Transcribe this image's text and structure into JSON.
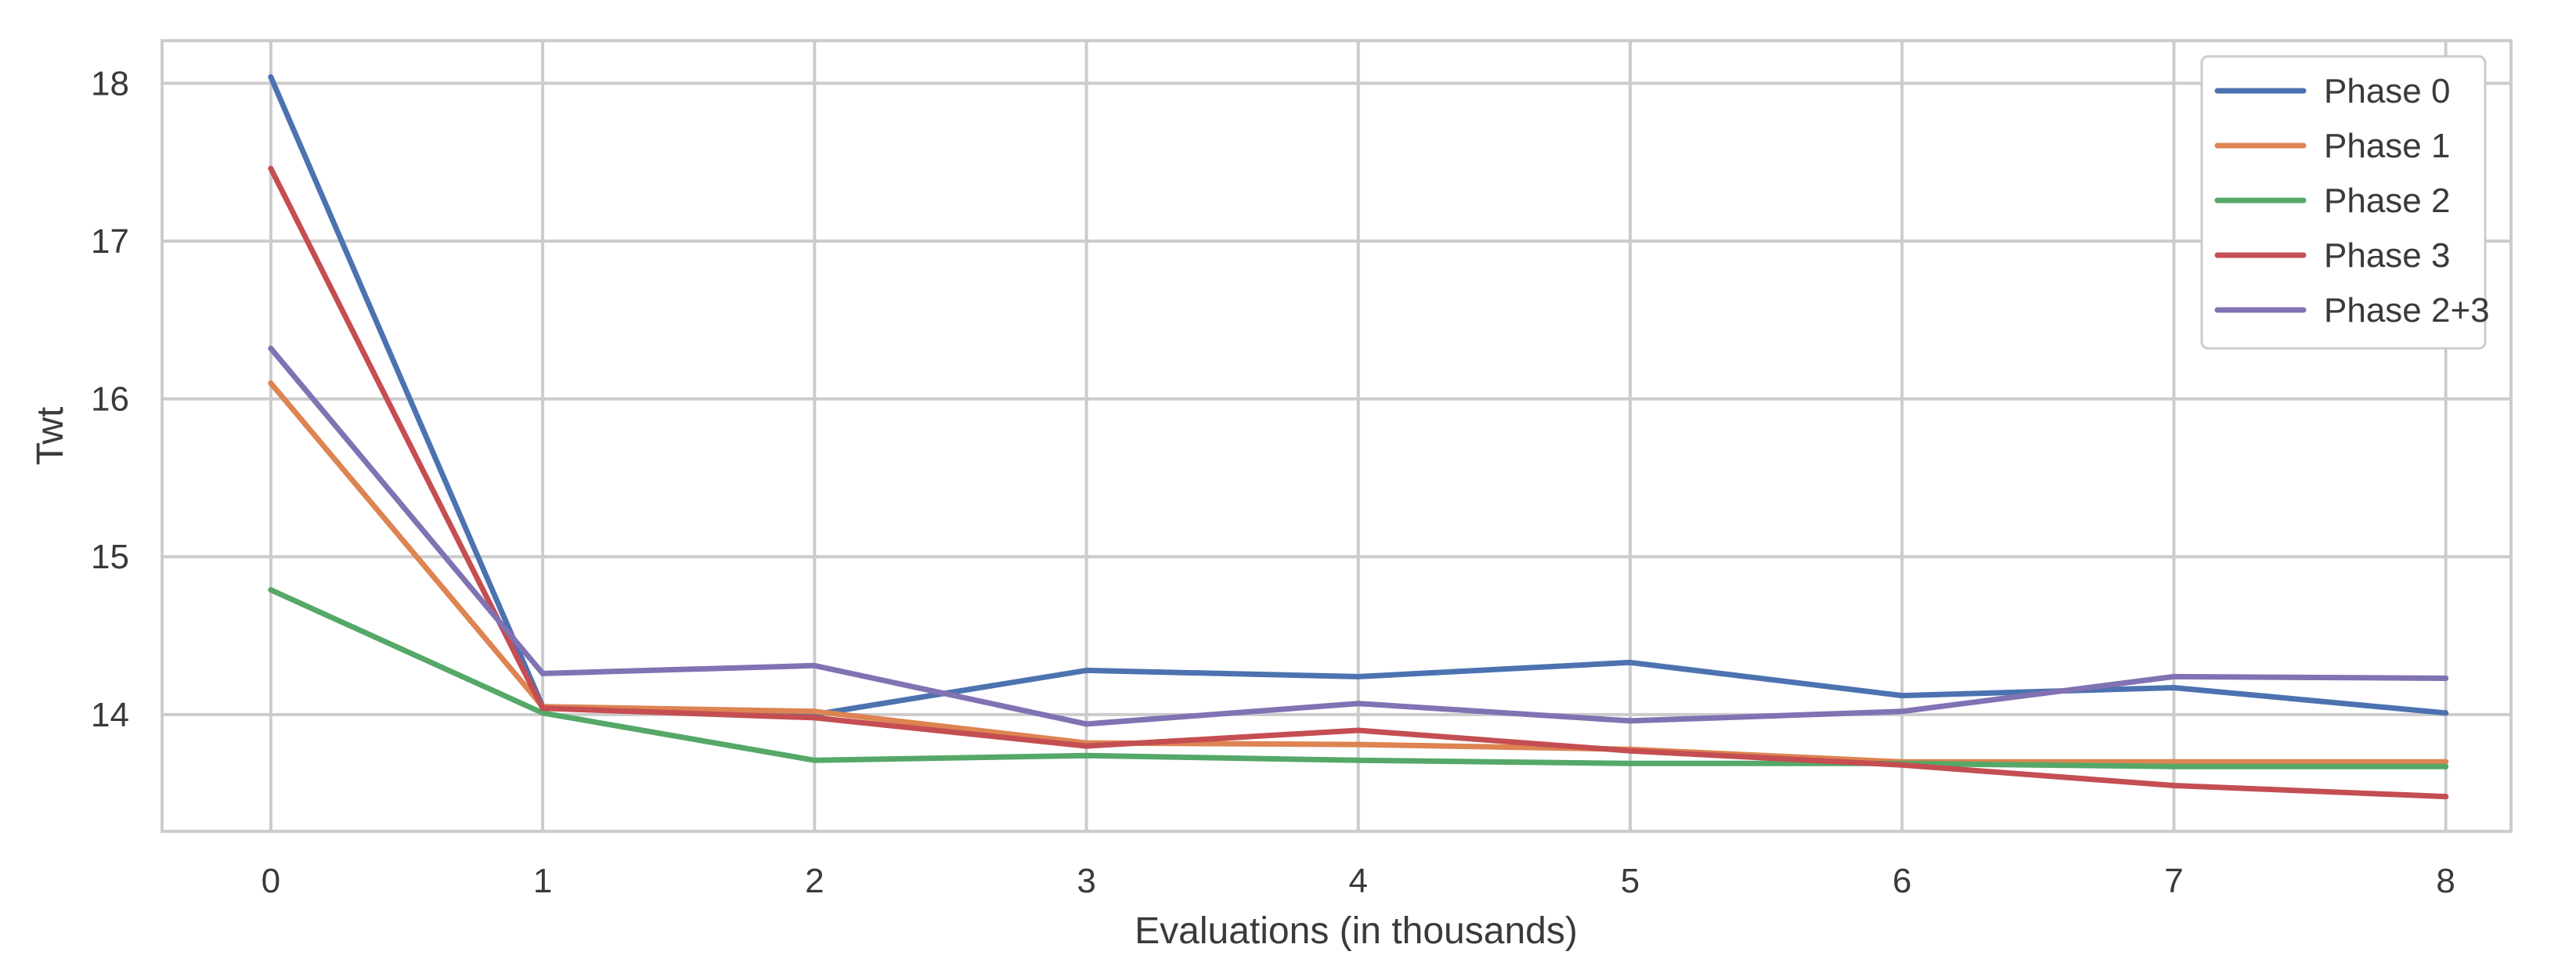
{
  "chart_data": {
    "type": "line",
    "title": "",
    "xlabel": "Evaluations (in thousands)",
    "ylabel": "Twt",
    "x": [
      0,
      1,
      2,
      3,
      4,
      5,
      6,
      7,
      8
    ],
    "x_ticks": [
      "0",
      "1",
      "2",
      "3",
      "4",
      "5",
      "6",
      "7",
      "8"
    ],
    "y_ticks": [
      "14",
      "15",
      "16",
      "17",
      "18"
    ],
    "xlim": [
      -0.4,
      8.24
    ],
    "ylim": [
      13.26,
      18.27
    ],
    "grid": true,
    "legend_position": "top-right",
    "series": [
      {
        "name": "Phase 0",
        "color": "#4c72b0",
        "values": [
          18.04,
          14.05,
          14.0,
          14.28,
          14.24,
          14.33,
          14.12,
          14.17,
          14.01
        ]
      },
      {
        "name": "Phase 1",
        "color": "#dd8452",
        "values": [
          16.1,
          14.05,
          14.02,
          13.82,
          13.81,
          13.78,
          13.7,
          13.7,
          13.7
        ]
      },
      {
        "name": "Phase 2",
        "color": "#55a868",
        "values": [
          14.79,
          14.01,
          13.71,
          13.74,
          13.71,
          13.69,
          13.69,
          13.67,
          13.67
        ]
      },
      {
        "name": "Phase 3",
        "color": "#c44e52",
        "values": [
          17.46,
          14.04,
          13.98,
          13.8,
          13.9,
          13.77,
          13.68,
          13.55,
          13.48
        ]
      },
      {
        "name": "Phase 2+3",
        "color": "#8172b3",
        "values": [
          16.32,
          14.26,
          14.31,
          13.94,
          14.07,
          13.96,
          14.02,
          14.24,
          14.23
        ]
      }
    ]
  }
}
